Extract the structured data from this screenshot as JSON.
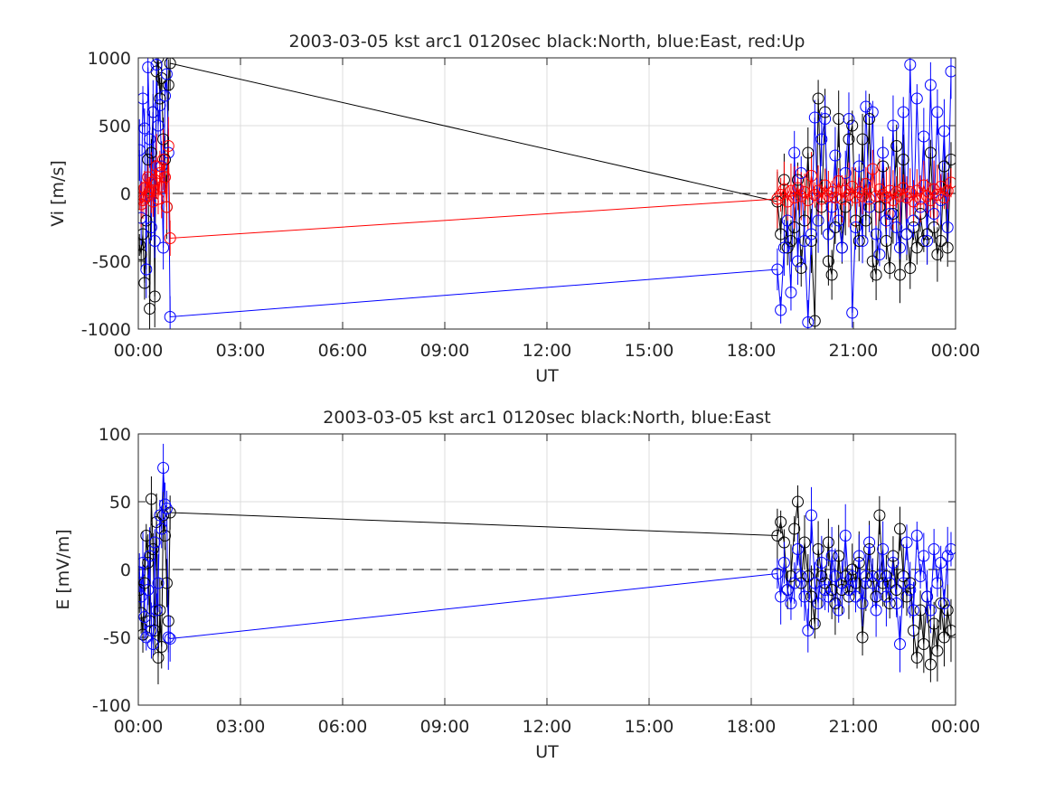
{
  "chart_data": [
    {
      "type": "scatter",
      "title": "2003-03-05 kst arc1 0120sec black:North, blue:East, red:Up",
      "xlabel": "UT",
      "ylabel": "Vi [m/s]",
      "xlim": [
        "00:00",
        "24:00"
      ],
      "ylim": [
        -1000,
        1000
      ],
      "xticks": [
        "00:00",
        "03:00",
        "06:00",
        "09:00",
        "12:00",
        "15:00",
        "18:00",
        "21:00",
        "00:00"
      ],
      "yticks": [
        "-1000",
        "-500",
        "0",
        "500",
        "1000"
      ],
      "grid": true,
      "zero_line": "dashed",
      "markers": "circle",
      "error_bars": true,
      "series": [
        {
          "color": "#000000",
          "x": [
            "00:02",
            "00:05",
            "00:08",
            "00:11",
            "00:14",
            "00:17",
            "00:20",
            "00:23",
            "00:26",
            "00:29",
            "00:32",
            "00:35",
            "00:38",
            "00:41",
            "00:44",
            "00:47",
            "00:50",
            "00:53",
            "00:56",
            "18:46",
            "18:52",
            "18:58",
            "19:04",
            "19:10",
            "19:16",
            "19:22",
            "19:28",
            "19:34",
            "19:40",
            "19:46",
            "19:52",
            "19:58",
            "20:04",
            "20:10",
            "20:16",
            "20:22",
            "20:28",
            "20:34",
            "20:40",
            "20:46",
            "20:52",
            "20:58",
            "21:04",
            "21:10",
            "21:16",
            "21:22",
            "21:28",
            "21:34",
            "21:40",
            "21:46",
            "21:52",
            "21:58",
            "22:04",
            "22:10",
            "22:16",
            "22:22",
            "22:28",
            "22:34",
            "22:40",
            "22:46",
            "22:52",
            "22:58",
            "23:04",
            "23:10",
            "23:16",
            "23:22",
            "23:28",
            "23:34",
            "23:40",
            "23:46",
            "23:52"
          ],
          "y": [
            -380,
            -450,
            -300,
            -660,
            -200,
            250,
            -850,
            300,
            600,
            -760,
            900,
            1000,
            700,
            850,
            400,
            250,
            -100,
            800,
            960,
            -60,
            -300,
            100,
            -400,
            -350,
            -250,
            100,
            -550,
            -200,
            300,
            -350,
            -940,
            700,
            -100,
            600,
            -500,
            -600,
            -250,
            550,
            -400,
            -100,
            400,
            500,
            -200,
            -350,
            400,
            -200,
            550,
            -500,
            -600,
            -100,
            200,
            -350,
            -550,
            -150,
            350,
            -600,
            250,
            -300,
            -550,
            -250,
            -400,
            -150,
            -350,
            -300,
            300,
            -250,
            -450,
            -350,
            200,
            -400,
            250
          ]
        },
        {
          "color": "#0000ff",
          "x": [
            "00:02",
            "00:05",
            "00:08",
            "00:11",
            "00:14",
            "00:17",
            "00:20",
            "00:23",
            "00:26",
            "00:29",
            "00:32",
            "00:35",
            "00:38",
            "00:41",
            "00:44",
            "00:47",
            "00:50",
            "00:53",
            "00:56",
            "18:46",
            "18:52",
            "18:58",
            "19:04",
            "19:10",
            "19:16",
            "19:22",
            "19:28",
            "19:34",
            "19:40",
            "19:46",
            "19:52",
            "19:58",
            "20:04",
            "20:10",
            "20:16",
            "20:22",
            "20:28",
            "20:34",
            "20:40",
            "20:46",
            "20:52",
            "20:58",
            "21:04",
            "21:10",
            "21:16",
            "21:22",
            "21:28",
            "21:34",
            "21:40",
            "21:46",
            "21:52",
            "21:58",
            "22:04",
            "22:10",
            "22:16",
            "22:22",
            "22:28",
            "22:34",
            "22:40",
            "22:46",
            "22:52",
            "22:58",
            "23:04",
            "23:10",
            "23:16",
            "23:22",
            "23:28",
            "23:34",
            "23:40",
            "23:46",
            "23:52"
          ],
          "y": [
            320,
            -180,
            700,
            480,
            -560,
            930,
            400,
            -250,
            600,
            -350,
            950,
            500,
            650,
            200,
            -400,
            720,
            880,
            300,
            -910,
            -560,
            -860,
            -400,
            -200,
            -730,
            300,
            -500,
            150,
            -350,
            -950,
            -300,
            560,
            -200,
            400,
            550,
            -300,
            -100,
            280,
            -200,
            -400,
            150,
            550,
            -880,
            -250,
            200,
            -350,
            640,
            -100,
            600,
            -300,
            -450,
            300,
            -200,
            -150,
            500,
            -250,
            -400,
            600,
            -300,
            950,
            -200,
            700,
            -100,
            420,
            -350,
            800,
            -150,
            600,
            -50,
            460,
            -250,
            900
          ]
        },
        {
          "color": "#ff0000",
          "x": [
            "00:02",
            "00:05",
            "00:08",
            "00:11",
            "00:14",
            "00:17",
            "00:20",
            "00:23",
            "00:26",
            "00:29",
            "00:32",
            "00:35",
            "00:38",
            "00:41",
            "00:44",
            "00:47",
            "00:50",
            "00:53",
            "00:56",
            "18:46",
            "18:52",
            "18:58",
            "19:04",
            "19:10",
            "19:16",
            "19:22",
            "19:28",
            "19:34",
            "19:40",
            "19:46",
            "19:52",
            "19:58",
            "20:04",
            "20:10",
            "20:16",
            "20:22",
            "20:28",
            "20:34",
            "20:40",
            "20:46",
            "20:52",
            "20:58",
            "21:04",
            "21:10",
            "21:16",
            "21:22",
            "21:28",
            "21:34",
            "21:40",
            "21:46",
            "21:52",
            "21:58",
            "22:04",
            "22:10",
            "22:16",
            "22:22",
            "22:28",
            "22:34",
            "22:40",
            "22:46",
            "22:52",
            "22:58",
            "23:04",
            "23:10",
            "23:16",
            "23:22",
            "23:28",
            "23:34",
            "23:40",
            "23:46",
            "23:52"
          ],
          "y": [
            -30,
            -80,
            -50,
            40,
            -20,
            120,
            20,
            80,
            -60,
            100,
            200,
            -40,
            150,
            50,
            250,
            120,
            -100,
            350,
            -330,
            -40,
            -10,
            30,
            -60,
            20,
            -30,
            40,
            -20,
            10,
            -50,
            130,
            -10,
            20,
            -40,
            60,
            -20,
            10,
            -30,
            90,
            -40,
            20,
            -10,
            50,
            -30,
            10,
            -20,
            70,
            -40,
            180,
            -20,
            30,
            -10,
            -30,
            20,
            -50,
            10,
            -20,
            40,
            -30,
            10,
            -60,
            20,
            -40,
            60,
            -20,
            -50,
            30,
            -10,
            50,
            -30,
            20,
            80
          ]
        }
      ]
    },
    {
      "type": "scatter",
      "title": "2003-03-05 kst arc1 0120sec black:North, blue:East",
      "xlabel": "UT",
      "ylabel": "E [mV/m]",
      "xlim": [
        "00:00",
        "24:00"
      ],
      "ylim": [
        -100,
        100
      ],
      "xticks": [
        "00:00",
        "03:00",
        "06:00",
        "09:00",
        "12:00",
        "15:00",
        "18:00",
        "21:00",
        "00:00"
      ],
      "yticks": [
        "-100",
        "-50",
        "0",
        "50",
        "100"
      ],
      "grid": true,
      "zero_line": "dashed",
      "markers": "circle",
      "error_bars": true,
      "series": [
        {
          "color": "#000000",
          "x": [
            "00:02",
            "00:05",
            "00:08",
            "00:11",
            "00:14",
            "00:17",
            "00:20",
            "00:23",
            "00:26",
            "00:29",
            "00:32",
            "00:35",
            "00:38",
            "00:41",
            "00:44",
            "00:47",
            "00:50",
            "00:53",
            "00:56",
            "18:46",
            "18:52",
            "18:58",
            "19:04",
            "19:10",
            "19:16",
            "19:22",
            "19:28",
            "19:34",
            "19:40",
            "19:46",
            "19:52",
            "19:58",
            "20:04",
            "20:10",
            "20:16",
            "20:22",
            "20:28",
            "20:34",
            "20:40",
            "20:46",
            "20:52",
            "20:58",
            "21:04",
            "21:10",
            "21:16",
            "21:22",
            "21:28",
            "21:34",
            "21:40",
            "21:46",
            "21:52",
            "21:58",
            "22:04",
            "22:10",
            "22:16",
            "22:22",
            "22:28",
            "22:34",
            "22:40",
            "22:46",
            "22:52",
            "22:58",
            "23:04",
            "23:10",
            "23:16",
            "23:22",
            "23:28",
            "23:34",
            "23:40",
            "23:46",
            "23:52"
          ],
          "y": [
            -15,
            -32,
            -48,
            -10,
            25,
            5,
            -38,
            52,
            15,
            -45,
            35,
            -65,
            -30,
            -57,
            40,
            25,
            -10,
            -38,
            42,
            25,
            35,
            20,
            -15,
            -5,
            30,
            50,
            -10,
            20,
            -5,
            -20,
            -40,
            15,
            -5,
            -10,
            20,
            -15,
            -25,
            10,
            -15,
            -5,
            -20,
            0,
            -10,
            5,
            -50,
            -10,
            15,
            -5,
            -20,
            40,
            -10,
            -5,
            -25,
            10,
            -15,
            30,
            -5,
            -20,
            -10,
            -45,
            -65,
            -30,
            -55,
            -20,
            -70,
            -40,
            -60,
            -25,
            -50,
            -30,
            -45
          ]
        },
        {
          "color": "#0000ff",
          "x": [
            "00:02",
            "00:05",
            "00:08",
            "00:11",
            "00:14",
            "00:17",
            "00:20",
            "00:23",
            "00:26",
            "00:29",
            "00:32",
            "00:35",
            "00:38",
            "00:41",
            "00:44",
            "00:47",
            "00:50",
            "00:53",
            "00:56",
            "18:46",
            "18:52",
            "18:58",
            "19:04",
            "19:10",
            "19:16",
            "19:22",
            "19:28",
            "19:34",
            "19:40",
            "19:46",
            "19:52",
            "19:58",
            "20:04",
            "20:10",
            "20:16",
            "20:22",
            "20:28",
            "20:34",
            "20:40",
            "20:46",
            "20:52",
            "20:58",
            "21:04",
            "21:10",
            "21:16",
            "21:22",
            "21:28",
            "21:34",
            "21:40",
            "21:46",
            "21:52",
            "21:58",
            "22:04",
            "22:10",
            "22:16",
            "22:22",
            "22:28",
            "22:34",
            "22:40",
            "22:46",
            "22:52",
            "22:58",
            "23:04",
            "23:10",
            "23:16",
            "23:22",
            "23:28",
            "23:34",
            "23:40",
            "23:46",
            "23:52"
          ],
          "y": [
            -2,
            -20,
            5,
            -35,
            -50,
            -15,
            10,
            -45,
            -55,
            20,
            -30,
            -10,
            40,
            30,
            75,
            48,
            45,
            -50,
            -51,
            -3,
            -20,
            5,
            -15,
            -25,
            -10,
            15,
            -5,
            -20,
            -45,
            40,
            -10,
            -25,
            5,
            -15,
            -20,
            10,
            -5,
            -30,
            -10,
            25,
            -15,
            -5,
            -20,
            10,
            -25,
            -5,
            20,
            -10,
            -30,
            -5,
            15,
            -20,
            -10,
            5,
            -25,
            -55,
            -10,
            20,
            -15,
            -30,
            25,
            -5,
            10,
            -20,
            -30,
            15,
            -10,
            5,
            -25,
            10,
            15
          ]
        }
      ]
    }
  ]
}
